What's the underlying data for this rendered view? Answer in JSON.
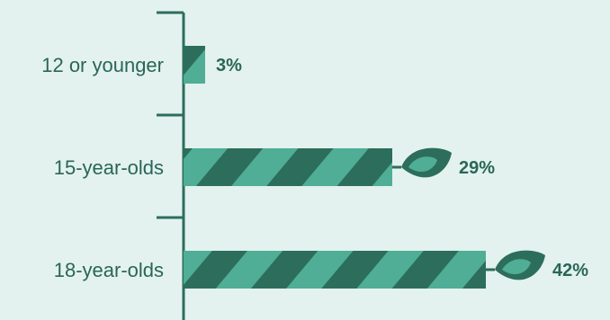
{
  "chart_data": {
    "type": "bar",
    "orientation": "horizontal",
    "categories": [
      "12 or younger",
      "15-year-olds",
      "18-year-olds"
    ],
    "values": [
      3,
      29,
      42
    ],
    "value_labels": [
      "3%",
      "29%",
      "42%"
    ],
    "xlim": [
      0,
      42
    ],
    "grid": false,
    "legend": "none"
  },
  "colors": {
    "background": "#e3f2ef",
    "bar_dark": "#2c6e5b",
    "bar_light": "#4fae95",
    "axis": "#2c6e5b",
    "text": "#2a6655"
  },
  "icons": [
    "leaf-icon"
  ]
}
